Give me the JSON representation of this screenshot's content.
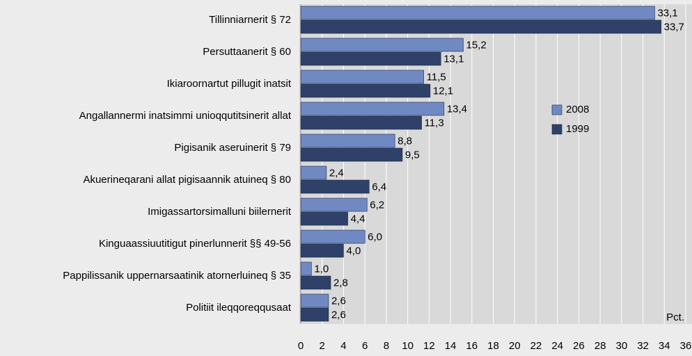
{
  "chart_data": {
    "type": "hbar",
    "categories": [
      "Tillinniarnerit § 72",
      "Persuttaanerit § 60",
      "Ikiaroornartut pillugit inatsit",
      "Angallannermi inatsimmi unioqqutitsinerit allat",
      "Pigisanik aseruinerit § 79",
      "Akuerineqaranі allat pigisaannik atuineq § 80",
      "Imigassartorsimalluni biilernerit",
      "Kinguaassiuutitigut pinerlunnerit §§ 49-56",
      "Pappilissanik uppernarsaatinik atornerluineq § 35",
      "Politiit ileqqoreqqusaat"
    ],
    "series": [
      {
        "name": "2008",
        "color": "#7189c3",
        "values": [
          33.1,
          15.2,
          11.5,
          13.4,
          8.8,
          2.4,
          6.2,
          6.0,
          1.0,
          2.6
        ],
        "value_labels": [
          "33,1",
          "15,2",
          "11,5",
          "13,4",
          "8,8",
          "2,4",
          "6,2",
          "6,0",
          "1,0",
          "2,6"
        ]
      },
      {
        "name": "1999",
        "color": "#2f4168",
        "values": [
          33.7,
          13.1,
          12.1,
          11.3,
          9.5,
          6.4,
          4.4,
          4.0,
          2.8,
          2.6
        ],
        "value_labels": [
          "33,7",
          "13,1",
          "12,1",
          "11,3",
          "9,5",
          "6,4",
          "4,4",
          "4,0",
          "2,8",
          "2,6"
        ]
      }
    ],
    "xlabel": "Pct.",
    "xlim": [
      0,
      36
    ],
    "xticks": [
      0,
      2,
      4,
      6,
      8,
      10,
      12,
      14,
      16,
      18,
      20,
      22,
      24,
      26,
      28,
      30,
      32,
      34,
      36
    ],
    "grid": true
  }
}
